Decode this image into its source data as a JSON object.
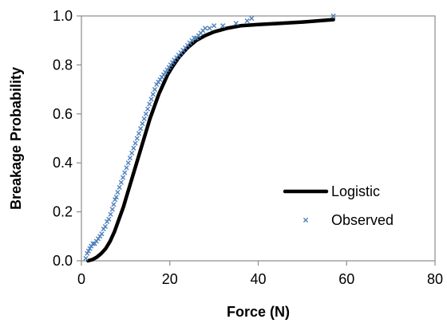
{
  "chart_data": {
    "type": "scatter",
    "title": "",
    "xlabel": "Force (N)",
    "ylabel": "Breakage Probability",
    "xlim": [
      0,
      80
    ],
    "ylim": [
      0,
      1
    ],
    "x_ticks": [
      "0",
      "20",
      "40",
      "60",
      "80"
    ],
    "y_ticks": [
      "0.0",
      "0.2",
      "0.4",
      "0.6",
      "0.8",
      "1.0"
    ],
    "grid": false,
    "legend_position": "bottom-right",
    "series": [
      {
        "name": "Logistic",
        "kind": "line",
        "color": "#000000",
        "x": [
          1.5,
          2.5,
          3.5,
          4.5,
          5.5,
          6.5,
          7.5,
          8.5,
          9.5,
          10.5,
          11.5,
          12.5,
          13.5,
          14.5,
          15.5,
          16.5,
          17.5,
          18.5,
          19.5,
          20.5,
          22,
          24,
          26,
          28,
          30,
          33,
          36,
          40,
          45,
          50,
          57
        ],
        "y": [
          0.0,
          0.005,
          0.015,
          0.03,
          0.05,
          0.08,
          0.12,
          0.17,
          0.22,
          0.28,
          0.34,
          0.4,
          0.46,
          0.52,
          0.58,
          0.63,
          0.68,
          0.72,
          0.76,
          0.79,
          0.83,
          0.87,
          0.9,
          0.92,
          0.935,
          0.95,
          0.96,
          0.965,
          0.97,
          0.975,
          0.985
        ]
      },
      {
        "name": "Observed",
        "kind": "scatter",
        "color": "#4f81bd",
        "x": [
          1.0,
          1.3,
          1.6,
          1.9,
          2.2,
          2.6,
          3.0,
          3.4,
          3.8,
          4.2,
          4.6,
          5.0,
          5.4,
          5.8,
          6.2,
          6.6,
          7.0,
          7.3,
          7.6,
          7.9,
          8.2,
          8.6,
          9.0,
          9.4,
          9.8,
          10.2,
          10.6,
          11.0,
          11.4,
          11.8,
          12.2,
          12.6,
          13.0,
          13.4,
          13.8,
          14.2,
          14.6,
          15.0,
          15.4,
          15.8,
          16.2,
          16.6,
          17.0,
          17.4,
          17.8,
          18.2,
          18.6,
          19.0,
          19.4,
          19.8,
          20.2,
          20.6,
          21.0,
          21.5,
          22.0,
          22.5,
          23.0,
          23.5,
          24.0,
          24.5,
          25.0,
          25.5,
          26.0,
          26.5,
          27.0,
          27.5,
          28.0,
          29.0,
          30.0,
          32.0,
          35.0,
          37.5,
          38.5,
          57.0
        ],
        "y": [
          0.01,
          0.03,
          0.04,
          0.05,
          0.06,
          0.07,
          0.07,
          0.08,
          0.09,
          0.1,
          0.11,
          0.13,
          0.14,
          0.16,
          0.17,
          0.19,
          0.21,
          0.23,
          0.25,
          0.26,
          0.28,
          0.3,
          0.32,
          0.34,
          0.36,
          0.38,
          0.4,
          0.42,
          0.44,
          0.46,
          0.48,
          0.5,
          0.52,
          0.54,
          0.56,
          0.58,
          0.6,
          0.62,
          0.64,
          0.66,
          0.68,
          0.7,
          0.72,
          0.73,
          0.74,
          0.75,
          0.76,
          0.77,
          0.78,
          0.79,
          0.8,
          0.81,
          0.82,
          0.83,
          0.84,
          0.85,
          0.86,
          0.87,
          0.88,
          0.89,
          0.9,
          0.91,
          0.91,
          0.92,
          0.93,
          0.94,
          0.95,
          0.95,
          0.96,
          0.96,
          0.97,
          0.98,
          0.99,
          1.0
        ]
      }
    ]
  }
}
